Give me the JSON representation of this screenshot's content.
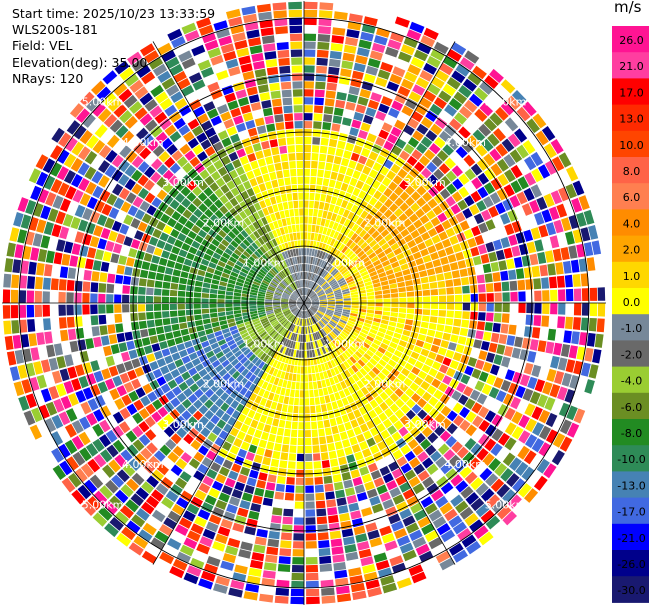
{
  "header": {
    "start_time": "Start time: 2025/10/23 13:33:59",
    "station": "WLS200s-181",
    "field": "Field: VEL",
    "elevation": "Elevation(deg): 35.00",
    "nrays": "NRays: 120"
  },
  "colorbar": {
    "unit": "m/s",
    "labels": [
      "26.0",
      "21.0",
      "17.0",
      "13.0",
      "10.0",
      "8.0",
      "6.0",
      "4.0",
      "2.0",
      "1.0",
      "0.0",
      "-1.0",
      "-2.0",
      "-4.0",
      "-6.0",
      "-8.0",
      "-10.0",
      "-13.0",
      "-17.0",
      "-21.0",
      "-26.0",
      "-30.0"
    ],
    "bands": [
      "#ff1493",
      "#ff3ea0",
      "#ff0000",
      "#ff2a00",
      "#ff4500",
      "#ff6347",
      "#ff7f50",
      "#ff8c00",
      "#ffa500",
      "#ffd700",
      "#ffff00",
      "#778899",
      "#696969",
      "#9acd32",
      "#6b8e23",
      "#228b22",
      "#2e8b57",
      "#4682b4",
      "#4169e1",
      "#0000ff",
      "#00008b",
      "#191970"
    ]
  },
  "chart_data": {
    "type": "ppi",
    "field": "VEL",
    "units": "m/s",
    "nrays": 120,
    "elevation_deg": 35.0,
    "range_rings_km": [
      1.0,
      2.0,
      3.0,
      4.0,
      5.0
    ],
    "ring_labels": [
      "1.00km",
      "2.00km",
      "3.00km",
      "4.00km",
      "5.00km"
    ],
    "max_range_km": 5.3,
    "velocity_pattern": {
      "east_sector": "positive, 2 to 6 m/s (yellow/orange)",
      "west_sector": "negative, -2 to -8 m/s (green)",
      "southwest_sector": "negative, -8 to -13 m/s (blue)",
      "near_center": "around 0 m/s (grey)",
      "beyond_3km": "noisy, full color range"
    }
  }
}
